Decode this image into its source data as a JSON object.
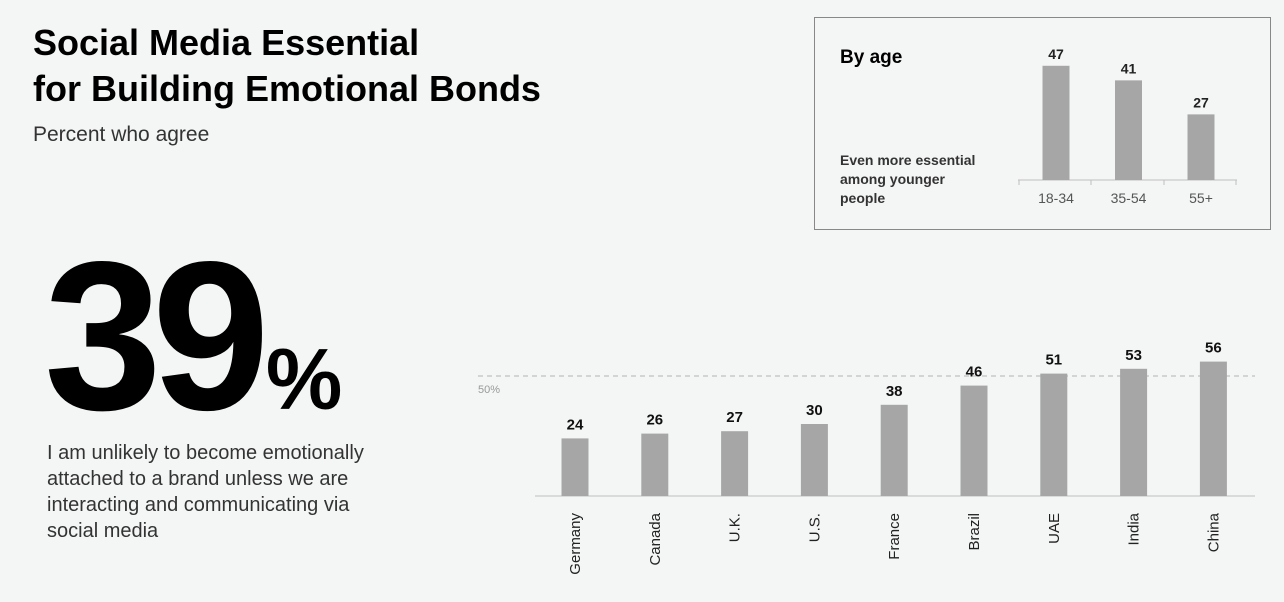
{
  "title_lines": [
    "Social Media Essential",
    "for Building Emotional Bonds"
  ],
  "subtitle": "Percent who agree",
  "headline": {
    "number": "39",
    "percent": "%"
  },
  "statement": "I am unlikely to become emotionally attached to a brand unless we are interacting and communicating via social media",
  "colors": {
    "bar": "#a6a6a6",
    "axis": "#bfbfbf",
    "reference_line": "#b3b3b3",
    "panel_border": "#888888"
  },
  "age_panel": {
    "heading": "By age",
    "note": "Even more essential among younger people"
  },
  "chart_data": [
    {
      "type": "bar",
      "categories": [
        "18-34",
        "35-54",
        "55+"
      ],
      "values": [
        47,
        41,
        27
      ],
      "title": "By age",
      "data_labels": true,
      "ylim": [
        0,
        60
      ]
    },
    {
      "type": "bar",
      "categories": [
        "Germany",
        "Canada",
        "U.K.",
        "U.S.",
        "France",
        "Brazil",
        "UAE",
        "India",
        "China"
      ],
      "values": [
        24,
        26,
        27,
        30,
        38,
        46,
        51,
        53,
        56
      ],
      "data_labels": true,
      "reference_line": {
        "value": 50,
        "label": "50%"
      },
      "ylim": [
        0,
        60
      ]
    }
  ]
}
